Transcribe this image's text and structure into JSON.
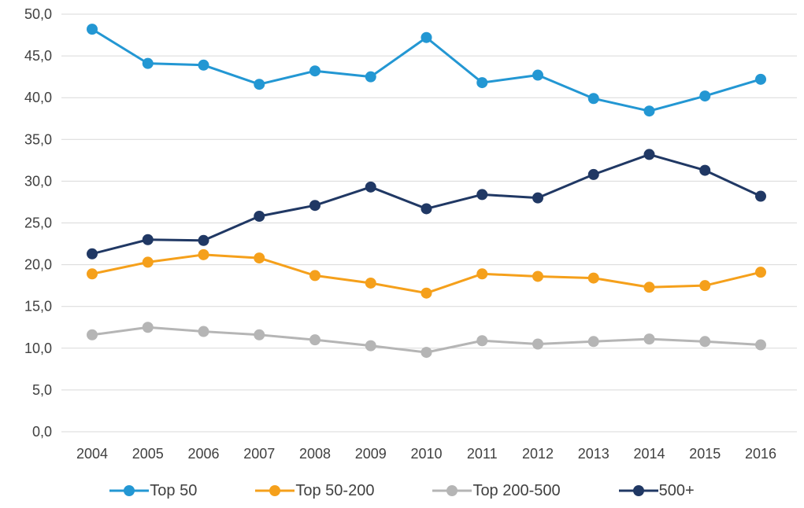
{
  "chart_data": {
    "type": "line",
    "title": "",
    "xlabel": "",
    "ylabel": "",
    "grid": "horizontal",
    "legend_position": "bottom",
    "categories": [
      "2004",
      "2005",
      "2006",
      "2007",
      "2008",
      "2009",
      "2010",
      "2011",
      "2012",
      "2013",
      "2014",
      "2015",
      "2016"
    ],
    "y_axis": {
      "min": 0,
      "max": 50,
      "step": 5,
      "tick_labels": [
        "0,0",
        "5,0",
        "10,0",
        "15,0",
        "20,0",
        "25,0",
        "30,0",
        "35,0",
        "40,0",
        "45,0",
        "50,0"
      ]
    },
    "series": [
      {
        "name": "Top 50",
        "color": "#2397D3",
        "values": [
          48.2,
          44.1,
          43.9,
          41.6,
          43.2,
          42.5,
          47.2,
          41.8,
          42.7,
          39.9,
          38.4,
          40.2,
          42.2
        ]
      },
      {
        "name": "Top 50-200",
        "color": "#F5A01B",
        "values": [
          18.9,
          20.3,
          21.2,
          20.8,
          18.7,
          17.8,
          16.6,
          18.9,
          18.6,
          18.4,
          17.3,
          17.5,
          19.1
        ]
      },
      {
        "name": "Top 200-500",
        "color": "#B5B5B5",
        "values": [
          11.6,
          12.5,
          12.0,
          11.6,
          11.0,
          10.3,
          9.5,
          10.9,
          10.5,
          10.8,
          11.1,
          10.8,
          10.4
        ]
      },
      {
        "name": "500+",
        "color": "#203864",
        "values": [
          21.3,
          23.0,
          22.9,
          25.8,
          27.1,
          29.3,
          26.7,
          28.4,
          28.0,
          30.8,
          33.2,
          31.3,
          28.2
        ]
      }
    ],
    "style": {
      "gridline_color": "#D9D9D9",
      "axis_text_color": "#404040",
      "background": "#FFFFFF"
    }
  }
}
